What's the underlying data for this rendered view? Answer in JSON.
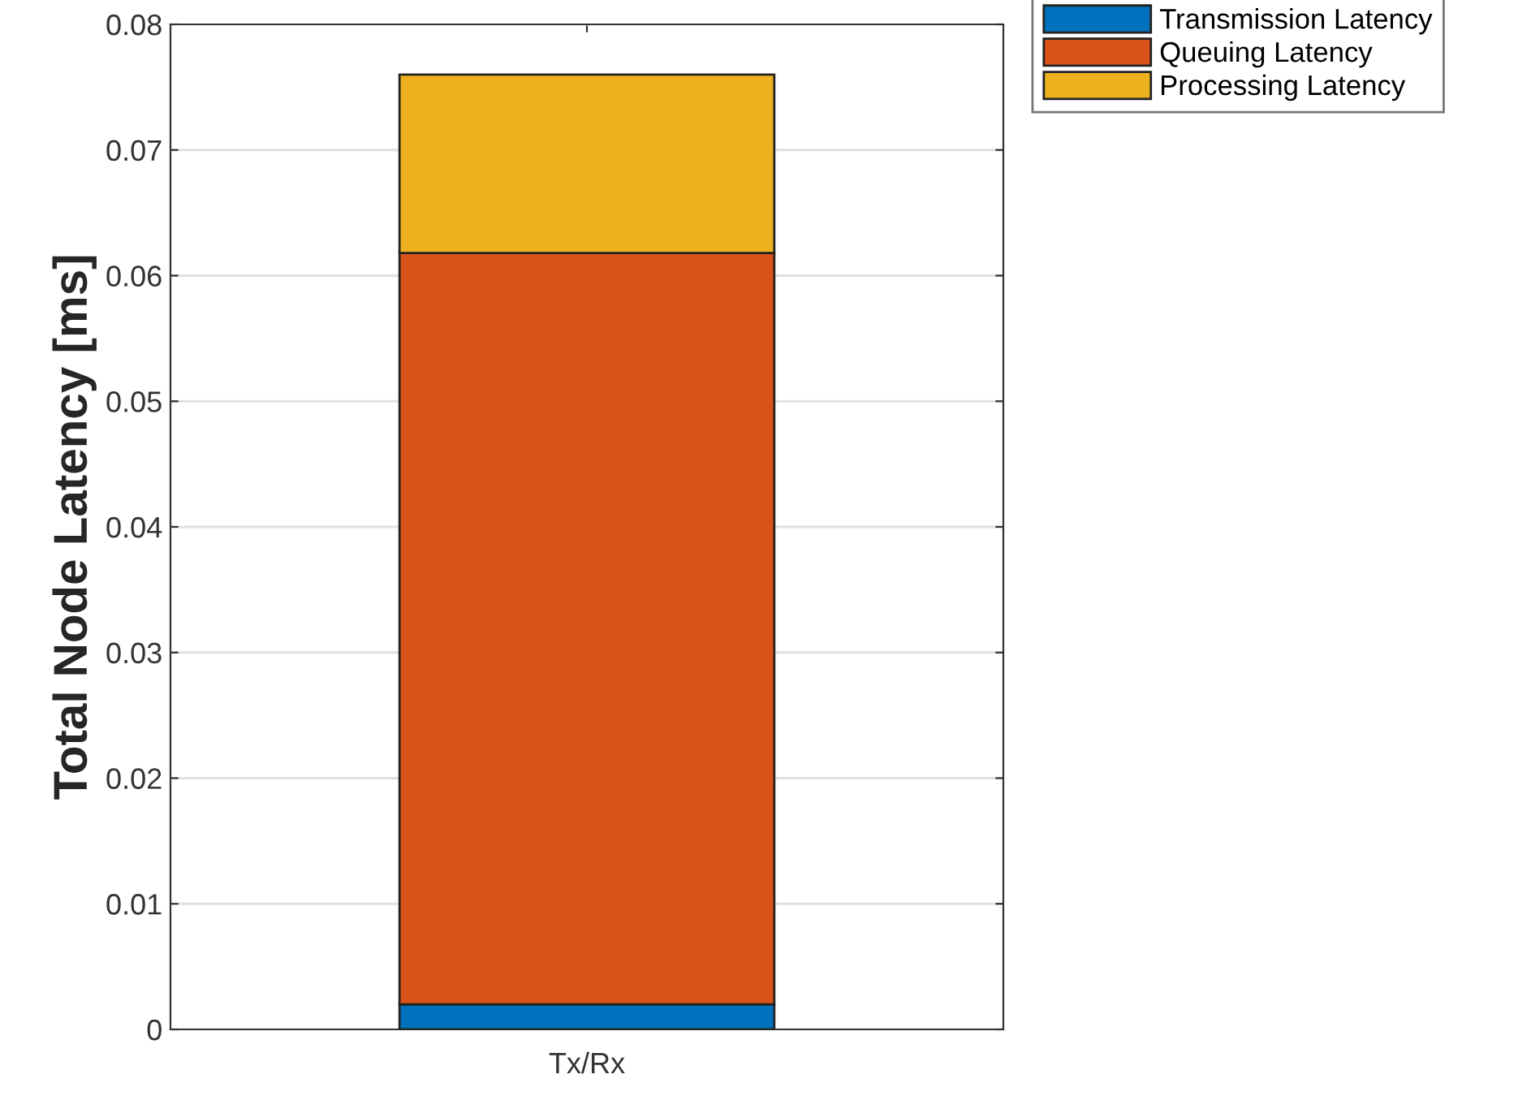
{
  "chart_data": {
    "type": "bar",
    "stacked": true,
    "ylabel": "Total Node Latency [ms]",
    "categories": [
      "Tx/Rx"
    ],
    "series": [
      {
        "name": "Transmission Latency",
        "color": "#0072bd",
        "values": [
          0.002
        ]
      },
      {
        "name": "Queuing Latency",
        "color": "#d95319",
        "values": [
          0.0598
        ]
      },
      {
        "name": "Processing Latency",
        "color": "#edb120",
        "values": [
          0.0142
        ]
      }
    ],
    "ylim": [
      0,
      0.08
    ],
    "yticks": [
      0,
      0.01,
      0.02,
      0.03,
      0.04,
      0.05,
      0.06,
      0.07,
      0.08
    ],
    "grid": "y",
    "legend": "top right"
  }
}
